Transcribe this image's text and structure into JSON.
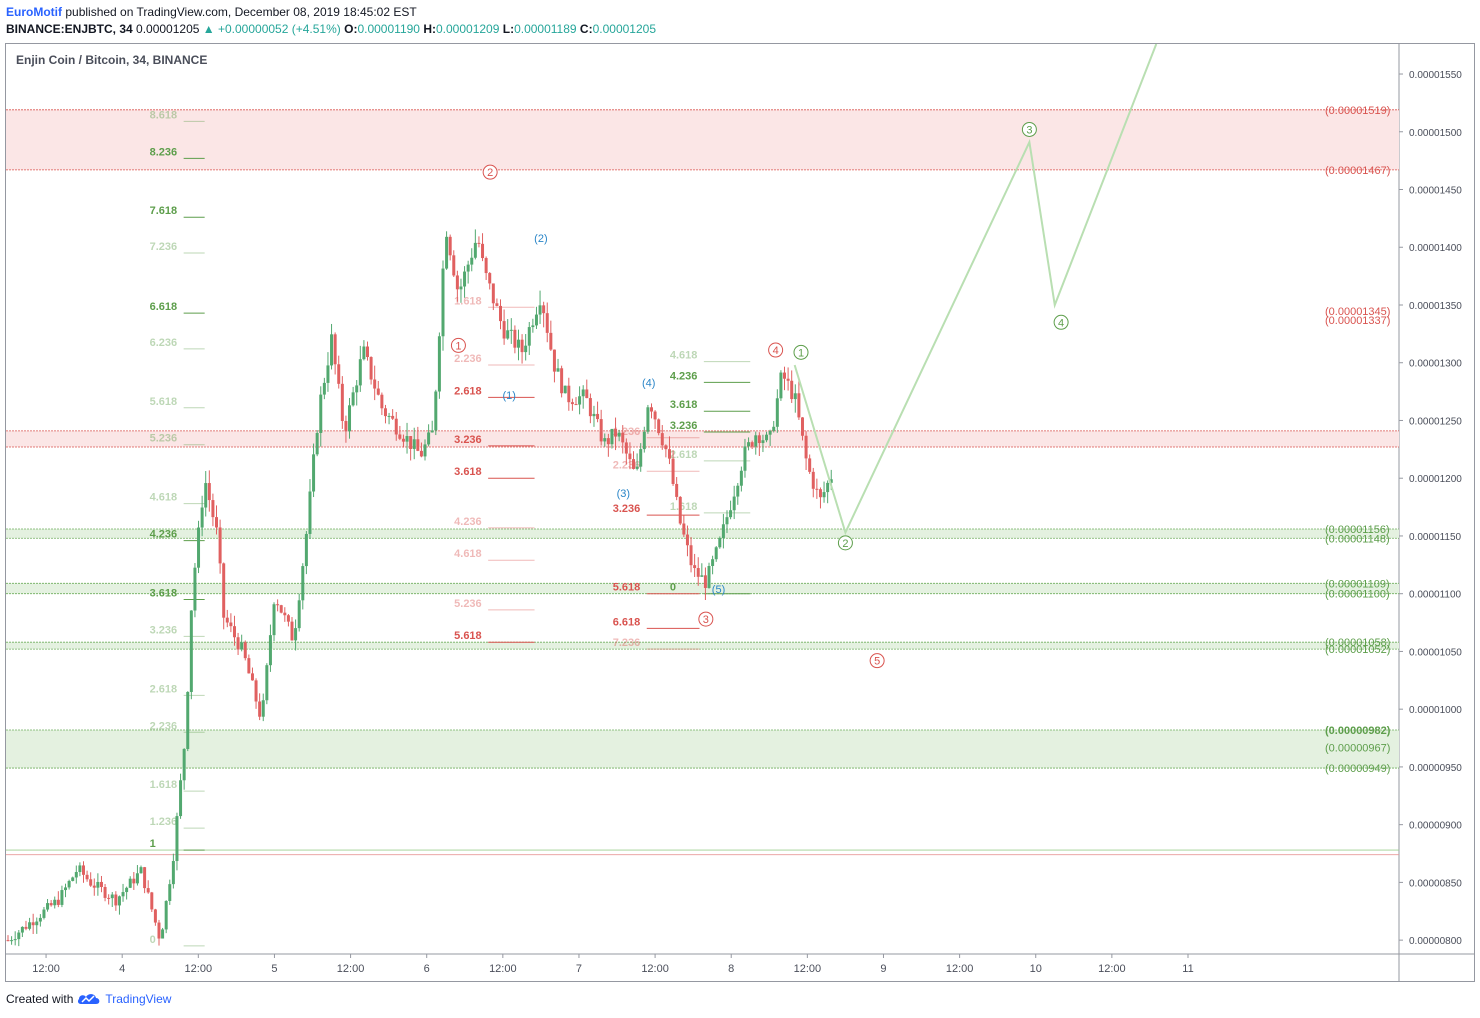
{
  "header": {
    "author": "EuroMotif",
    "published_text": "published on TradingView.com, December 08, 2019 18:45:02 EST",
    "symbol": "BINANCE:ENJBTC, 34",
    "last": "0.00001205",
    "change": "▲ +0.00000052 (+4.51%)",
    "o_label": "O:",
    "o_value": "0.00001190",
    "h_label": "H:",
    "h_value": "0.00001209",
    "l_label": "L:",
    "l_value": "0.00001189",
    "c_label": "C:",
    "c_value": "0.00001205"
  },
  "footer": {
    "created_with": "Created with",
    "brand": "TradingView"
  },
  "colors": {
    "up": "#52a86f",
    "down": "#e06060",
    "red_zone": "#fbe6e6",
    "green_zone": "#e4f1e0",
    "fib_green": "#5d9e4b",
    "fib_red": "#d9534f",
    "wave_blue": "#2b86c8",
    "projection": "#b9dfb2"
  },
  "chart_data": {
    "type": "candlestick",
    "title": "Enjin Coin / Bitcoin, 34, BINANCE",
    "y_ticks": [
      "0.00001550",
      "0.00001500",
      "0.00001450",
      "0.00001400",
      "0.00001350",
      "0.00001300",
      "0.00001250",
      "0.00001200",
      "0.00001150",
      "0.00001100",
      "0.00001050",
      "0.00001000",
      "0.00000950",
      "0.00000900",
      "0.00000850",
      "0.00000800"
    ],
    "x_ticks": [
      "12:00",
      "4",
      "12:00",
      "5",
      "12:00",
      "6",
      "12:00",
      "7",
      "12:00",
      "8",
      "12:00",
      "9",
      "12:00",
      "10",
      "12:00",
      "11"
    ],
    "ylim": [
      7.88e-06,
      1.576e-05
    ],
    "x_range_hours": [
      0,
      218
    ],
    "x_ticks_hours": [
      6,
      18,
      30,
      42,
      54,
      66,
      78,
      90,
      102,
      114,
      126,
      138,
      150,
      162,
      174,
      186
    ],
    "ohlc_anchors": [
      [
        0,
        8e-06
      ],
      [
        8,
        8.35e-06
      ],
      [
        11,
        8.62e-06
      ],
      [
        13,
        8.5e-06
      ],
      [
        17,
        8.35e-06
      ],
      [
        21,
        8.6e-06
      ],
      [
        24,
        8e-06
      ],
      [
        26,
        8.7e-06
      ],
      [
        28,
        9.8e-06
      ],
      [
        29,
        1.1e-05
      ],
      [
        31,
        1.2e-05
      ],
      [
        33,
        1.15e-05
      ],
      [
        34,
        1.08e-05
      ],
      [
        37,
        1.05e-05
      ],
      [
        40,
        9.9e-06
      ],
      [
        42,
        1.1e-05
      ],
      [
        45,
        1.06e-05
      ],
      [
        47,
        1.15e-05
      ],
      [
        49,
        1.26e-05
      ],
      [
        51,
        1.32e-05
      ],
      [
        53,
        1.24e-05
      ],
      [
        56,
        1.31e-05
      ],
      [
        59,
        1.26e-05
      ],
      [
        62,
        1.24e-05
      ],
      [
        65,
        1.22e-05
      ],
      [
        67,
        1.24e-05
      ],
      [
        69,
        1.42e-05
      ],
      [
        71,
        1.36e-05
      ],
      [
        74,
        1.41e-05
      ],
      [
        75,
        1.38e-05
      ],
      [
        78,
        1.33e-05
      ],
      [
        81,
        1.31e-05
      ],
      [
        84,
        1.36e-05
      ],
      [
        86,
        1.3e-05
      ],
      [
        88,
        1.27e-05
      ],
      [
        91,
        1.27e-05
      ],
      [
        94,
        1.23e-05
      ],
      [
        96,
        1.24e-05
      ],
      [
        99,
        1.2e-05
      ],
      [
        101,
        1.27e-05
      ],
      [
        104,
        1.22e-05
      ],
      [
        106,
        1.16e-05
      ],
      [
        108,
        1.12e-05
      ],
      [
        110,
        1.11e-05
      ],
      [
        112,
        1.14e-05
      ],
      [
        114,
        1.18e-05
      ],
      [
        116,
        1.22e-05
      ],
      [
        118,
        1.24e-05
      ],
      [
        120,
        1.23e-05
      ],
      [
        122,
        1.29e-05
      ],
      [
        124,
        1.27e-05
      ],
      [
        126,
        1.21e-05
      ],
      [
        128,
        1.18e-05
      ],
      [
        130,
        1.205e-05
      ]
    ],
    "zones": [
      {
        "top": 1.519e-05,
        "bottom": 1.467e-05,
        "color": "red"
      },
      {
        "top": 1.241e-05,
        "bottom": 1.227e-05,
        "color": "red"
      },
      {
        "top": 1.156e-05,
        "bottom": 1.148e-05,
        "color": "green"
      },
      {
        "top": 1.109e-05,
        "bottom": 1.1e-05,
        "color": "green"
      },
      {
        "top": 1.058e-05,
        "bottom": 1.052e-05,
        "color": "green"
      },
      {
        "top": 9.82e-06,
        "bottom": 9.49e-06,
        "color": "green"
      }
    ],
    "level_labels": [
      {
        "label": "(0.00001519)",
        "price": 1.519e-05,
        "color": "red"
      },
      {
        "label": "(0.00001467)",
        "price": 1.467e-05,
        "color": "red"
      },
      {
        "label": "(0.00001345)",
        "price": 1.345e-05,
        "color": "red"
      },
      {
        "label": "(0.00001337)",
        "price": 1.337e-05,
        "color": "red"
      },
      {
        "label": "(0.00001156)",
        "price": 1.156e-05,
        "color": "green"
      },
      {
        "label": "(0.00001148)",
        "price": 1.148e-05,
        "color": "green"
      },
      {
        "label": "(0.00001109)",
        "price": 1.109e-05,
        "color": "green"
      },
      {
        "label": "(0.00001100)",
        "price": 1.1e-05,
        "color": "green"
      },
      {
        "label": "(0.00001058)",
        "price": 1.058e-05,
        "color": "green"
      },
      {
        "label": "(0.00001052)",
        "price": 1.052e-05,
        "color": "green"
      },
      {
        "label": "(0.00000982)",
        "price": 9.82e-06,
        "color": "green"
      },
      {
        "label": "(0.00000967)",
        "price": 9.67e-06,
        "color": "green"
      },
      {
        "label": "(0.00000949)",
        "price": 9.49e-06,
        "color": "green"
      }
    ],
    "fib_left": {
      "ratios": [
        "0",
        "1",
        "1.236",
        "1.618",
        "2.236",
        "2.618",
        "3.236",
        "3.618",
        "4.236",
        "4.618",
        "5.236",
        "5.618",
        "6.236",
        "6.618",
        "7.236",
        "7.618",
        "8.236",
        "8.618"
      ],
      "prices": [
        7.95e-06,
        8.78e-06,
        8.97e-06,
        9.29e-06,
        9.8e-06,
        1.012e-05,
        1.063e-05,
        1.095e-05,
        1.146e-05,
        1.178e-05,
        1.229e-05,
        1.261e-05,
        1.312e-05,
        1.343e-05,
        1.395e-05,
        1.426e-05,
        1.477e-05,
        1.509e-05
      ],
      "strong": [
        "1",
        "3.618",
        "4.236",
        "6.618",
        "7.618",
        "8.236"
      ],
      "hours": [
        28,
        31
      ]
    },
    "fib_mid": {
      "ratios": [
        "1.618",
        "2.236",
        "2.618",
        "3.236",
        "3.618",
        "4.236",
        "4.618",
        "5.236",
        "5.618"
      ],
      "prices": [
        1.348e-05,
        1.298e-05,
        1.27e-05,
        1.228e-05,
        1.2e-05,
        1.157e-05,
        1.129e-05,
        1.086e-05,
        1.058e-05
      ],
      "strong": [
        "2.618",
        "3.236",
        "3.618",
        "5.618"
      ],
      "hours": [
        76,
        83
      ]
    },
    "fib_right_red": {
      "ratios": [
        "1.236",
        "2.236",
        "3.236",
        "5.618",
        "6.618",
        "7.236"
      ],
      "prices": [
        1.235e-05,
        1.206e-05,
        1.168e-05,
        1.1e-05,
        1.07e-05,
        1.052e-05
      ],
      "strong": [
        "3.236",
        "5.618",
        "6.618"
      ],
      "hours": [
        101,
        109
      ]
    },
    "fib_right_green": {
      "ratios": [
        "0",
        "1.618",
        "2.618",
        "3.236",
        "3.618",
        "4.236",
        "4.618"
      ],
      "prices": [
        1.1e-05,
        1.17e-05,
        1.215e-05,
        1.24e-05,
        1.258e-05,
        1.283e-05,
        1.301e-05
      ],
      "strong": [
        "0",
        "3.236",
        "3.618",
        "4.236"
      ],
      "hours": [
        110,
        117
      ]
    },
    "wave_labels": [
      {
        "text": "2",
        "circled": true,
        "hour": 76,
        "price": 1.465e-05,
        "color": "red"
      },
      {
        "text": "1",
        "circled": true,
        "hour": 71,
        "price": 1.315e-05,
        "color": "red"
      },
      {
        "text": "(2)",
        "circled": false,
        "hour": 84,
        "price": 1.408e-05,
        "color": "blue"
      },
      {
        "text": "(1)",
        "circled": false,
        "hour": 79,
        "price": 1.272e-05,
        "color": "blue"
      },
      {
        "text": "(4)",
        "circled": false,
        "hour": 101,
        "price": 1.283e-05,
        "color": "blue"
      },
      {
        "text": "(3)",
        "circled": false,
        "hour": 97,
        "price": 1.187e-05,
        "color": "blue"
      },
      {
        "text": "(5)",
        "circled": false,
        "hour": 112,
        "price": 1.104e-05,
        "color": "blue"
      },
      {
        "text": "3",
        "circled": true,
        "hour": 110,
        "price": 1.078e-05,
        "color": "red"
      },
      {
        "text": "4",
        "circled": true,
        "hour": 121,
        "price": 1.311e-05,
        "color": "red"
      },
      {
        "text": "5",
        "circled": true,
        "hour": 137,
        "price": 1.042e-05,
        "color": "red"
      },
      {
        "text": "1",
        "circled": true,
        "hour": 125,
        "price": 1.309e-05,
        "color": "green"
      },
      {
        "text": "2",
        "circled": true,
        "hour": 132,
        "price": 1.144e-05,
        "color": "green"
      },
      {
        "text": "3",
        "circled": true,
        "hour": 161,
        "price": 1.502e-05,
        "color": "green"
      },
      {
        "text": "4",
        "circled": true,
        "hour": 166,
        "price": 1.335e-05,
        "color": "green"
      }
    ],
    "projection_path": [
      [
        124,
        1.298e-05
      ],
      [
        132,
        1.153e-05
      ],
      [
        161,
        1.491e-05
      ],
      [
        165,
        1.35e-05
      ],
      [
        181,
        1.576e-05
      ]
    ]
  }
}
